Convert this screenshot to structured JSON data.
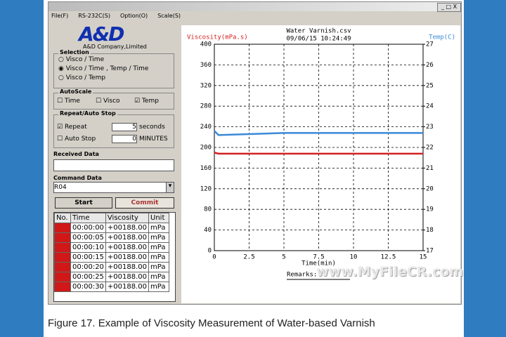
{
  "menu": [
    "File(F)",
    "RS-232C(S)",
    "Option(O)",
    "Scale(S)"
  ],
  "logo": {
    "brand": "A&D",
    "company": "A&D Company,Limited"
  },
  "selection": {
    "title": "Selection",
    "options": [
      "Visco / Time",
      "Visco / Time , Temp / Time",
      "Visco / Temp"
    ],
    "selected": 1
  },
  "autoscale": {
    "title": "AutoScale",
    "options": [
      "Time",
      "Visco",
      "Temp"
    ],
    "checked": [
      false,
      false,
      true
    ]
  },
  "repeat_auto_stop": {
    "title": "Repeat/Auto Stop",
    "repeat": {
      "label": "Repeat",
      "checked": true,
      "value": 5,
      "unit": "seconds"
    },
    "auto_stop": {
      "label": "Auto Stop",
      "checked": false,
      "value": 0,
      "unit": "MINUTES"
    }
  },
  "received_data": {
    "label": "Received Data"
  },
  "command_data": {
    "label": "Command Data",
    "value": "R04"
  },
  "buttons": [
    "Start",
    "Commit"
  ],
  "table": {
    "columns": [
      "No.",
      "Time",
      "Viscosity",
      "Unit"
    ],
    "rows": [
      [
        "00:00:00",
        "+00188.00",
        "mPa"
      ],
      [
        "00:00:05",
        "+00188.00",
        "mPa"
      ],
      [
        "00:00:10",
        "+00188.00",
        "mPa"
      ],
      [
        "00:00:15",
        "+00188.00",
        "mPa"
      ],
      [
        "00:00:20",
        "+00188.00",
        "mPa"
      ],
      [
        "00:00:25",
        "+00188.00",
        "mPa"
      ],
      [
        "00:00:30",
        "+00188.00",
        "mPa"
      ]
    ]
  },
  "chart_data": {
    "type": "line",
    "title": "Water Varnish.csv",
    "subtitle": "09/06/15  10:24:49",
    "x_label": "Time(min)",
    "y_label": "Viscosity(mPa.s)",
    "y2_label": "Temp(C)",
    "x": [
      0,
      0.3,
      5,
      15
    ],
    "series": [
      {
        "name": "Viscosity",
        "color": "#d42020",
        "values": [
          190,
          188,
          188,
          188
        ]
      },
      {
        "name": "Temp",
        "color": "#3a8ad8",
        "values": [
          22.8,
          22.6,
          22.7,
          22.7
        ],
        "axis": "y2"
      }
    ],
    "xlim": [
      0,
      15
    ],
    "xticks": [
      0,
      2.5,
      5,
      7.5,
      10,
      12.5,
      15
    ],
    "ylim": [
      0,
      400
    ],
    "yticks": [
      0,
      40,
      80,
      120,
      160,
      200,
      240,
      280,
      320,
      360,
      400
    ],
    "y2lim": [
      17,
      27
    ],
    "y2ticks": [
      17,
      18,
      19,
      20,
      21,
      22,
      23,
      24,
      25,
      26,
      27
    ],
    "grid": true,
    "remarks": "Remarks:"
  },
  "watermark": "www.MyFileCR.com",
  "caption": "Figure 17. Example of Viscosity Measurement of Water-based Varnish"
}
